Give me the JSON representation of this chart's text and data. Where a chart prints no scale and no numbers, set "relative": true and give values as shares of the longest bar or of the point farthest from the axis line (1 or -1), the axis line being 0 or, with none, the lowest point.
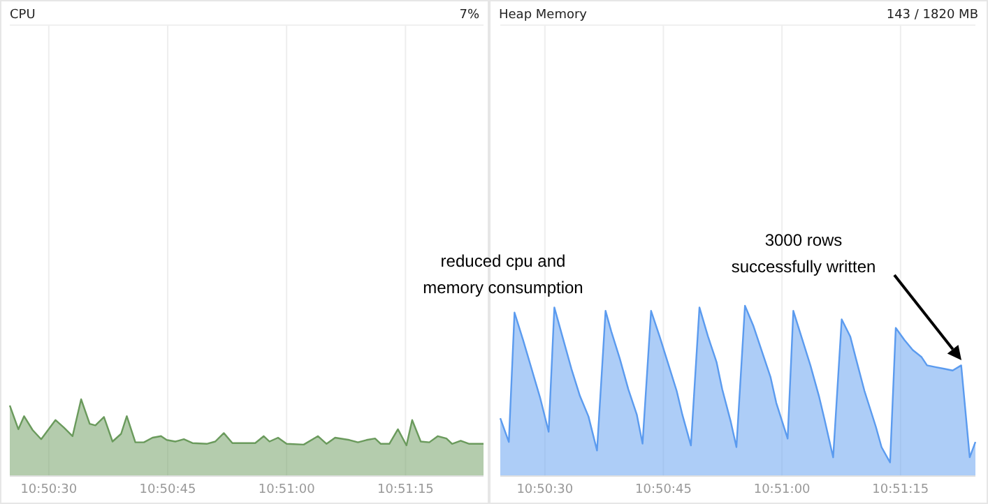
{
  "chart_data": [
    {
      "type": "area",
      "title": "CPU",
      "subtitle": "7%",
      "relative": true,
      "grid": "x",
      "marker": "none",
      "xlim": [
        10.8403,
        10.8569
      ],
      "xticks": [
        {
          "value": 10.841667,
          "label": "10:50:30"
        },
        {
          "value": 10.845833,
          "label": "10:50:45"
        },
        {
          "value": 10.85,
          "label": "10:51:00"
        },
        {
          "value": 10.854167,
          "label": "10:51:15"
        }
      ],
      "series": [
        {
          "color": "#6a9a5c",
          "x": [
            10.8403,
            10.8406,
            10.8408,
            10.8411,
            10.8414,
            10.8417,
            10.8419,
            10.8422,
            10.8425,
            10.8428,
            10.8431,
            10.8433,
            10.8436,
            10.8439,
            10.8442,
            10.8444,
            10.8447,
            10.845,
            10.8453,
            10.8456,
            10.8458,
            10.8461,
            10.8464,
            10.8467,
            10.8472,
            10.8475,
            10.8478,
            10.8481,
            10.8489,
            10.8492,
            10.8494,
            10.8497,
            10.85,
            10.8506,
            10.8511,
            10.8514,
            10.8517,
            10.8522,
            10.8525,
            10.8528,
            10.8531,
            10.8533,
            10.8536,
            10.8539,
            10.8542,
            10.8544,
            10.8547,
            10.855,
            10.8553,
            10.8556,
            10.8558,
            10.8561,
            10.8564,
            10.8569
          ],
          "values": [
            0.92,
            0.61,
            0.78,
            0.6,
            0.48,
            0.63,
            0.73,
            0.63,
            0.52,
            1,
            0.68,
            0.66,
            0.77,
            0.45,
            0.55,
            0.78,
            0.44,
            0.44,
            0.5,
            0.52,
            0.47,
            0.45,
            0.48,
            0.43,
            0.42,
            0.45,
            0.56,
            0.43,
            0.43,
            0.52,
            0.45,
            0.5,
            0.42,
            0.41,
            0.52,
            0.42,
            0.5,
            0.47,
            0.44,
            0.47,
            0.49,
            0.42,
            0.42,
            0.61,
            0.4,
            0.73,
            0.45,
            0.44,
            0.52,
            0.49,
            0.42,
            0.46,
            0.42,
            0.42
          ]
        }
      ]
    },
    {
      "type": "area",
      "title": "Heap Memory",
      "subtitle": "143 / 1820 MB",
      "relative": true,
      "grid": "x",
      "marker": "none",
      "xlim": [
        10.8401,
        10.8568
      ],
      "xticks": [
        {
          "value": 10.841667,
          "label": "10:50:30"
        },
        {
          "value": 10.845833,
          "label": "10:50:45"
        },
        {
          "value": 10.85,
          "label": "10:51:00"
        },
        {
          "value": 10.854167,
          "label": "10:51:15"
        }
      ],
      "annotations": [
        "reduced cpu and\nmemory consumption",
        "3000 rows\nsuccessfully written"
      ],
      "series": [
        {
          "color": "#5b9bef",
          "x": [
            10.8401,
            10.8404,
            10.8406,
            10.8409,
            10.8412,
            10.8415,
            10.8418,
            10.842,
            10.8423,
            10.8426,
            10.8429,
            10.8432,
            10.8435,
            10.8438,
            10.844,
            10.8443,
            10.8446,
            10.8449,
            10.8451,
            10.8454,
            10.8457,
            10.846,
            10.8463,
            10.8465,
            10.8468,
            10.8471,
            10.8474,
            10.8477,
            10.8479,
            10.8482,
            10.8484,
            10.8487,
            10.849,
            10.8493,
            10.8496,
            10.8498,
            10.8502,
            10.8504,
            10.8507,
            10.851,
            10.8513,
            10.8515,
            10.8518,
            10.8521,
            10.8524,
            10.8526,
            10.8529,
            10.8533,
            10.8535,
            10.8538,
            10.854,
            10.8543,
            10.8546,
            10.8549,
            10.8551,
            10.8554,
            10.8557,
            10.856,
            10.8563,
            10.8566,
            10.8568
          ],
          "values": [
            0.34,
            0.2,
            0.96,
            0.8,
            0.63,
            0.46,
            0.26,
            0.99,
            0.81,
            0.63,
            0.47,
            0.35,
            0.15,
            0.97,
            0.85,
            0.69,
            0.51,
            0.36,
            0.19,
            0.97,
            0.82,
            0.66,
            0.5,
            0.36,
            0.18,
            0.99,
            0.82,
            0.67,
            0.51,
            0.32,
            0.17,
            1,
            0.88,
            0.73,
            0.58,
            0.43,
            0.22,
            0.97,
            0.81,
            0.65,
            0.47,
            0.33,
            0.11,
            0.92,
            0.82,
            0.69,
            0.5,
            0.29,
            0.17,
            0.08,
            0.87,
            0.8,
            0.74,
            0.7,
            0.65,
            0.64,
            0.63,
            0.62,
            0.65,
            0.11,
            0.2
          ]
        }
      ]
    }
  ]
}
